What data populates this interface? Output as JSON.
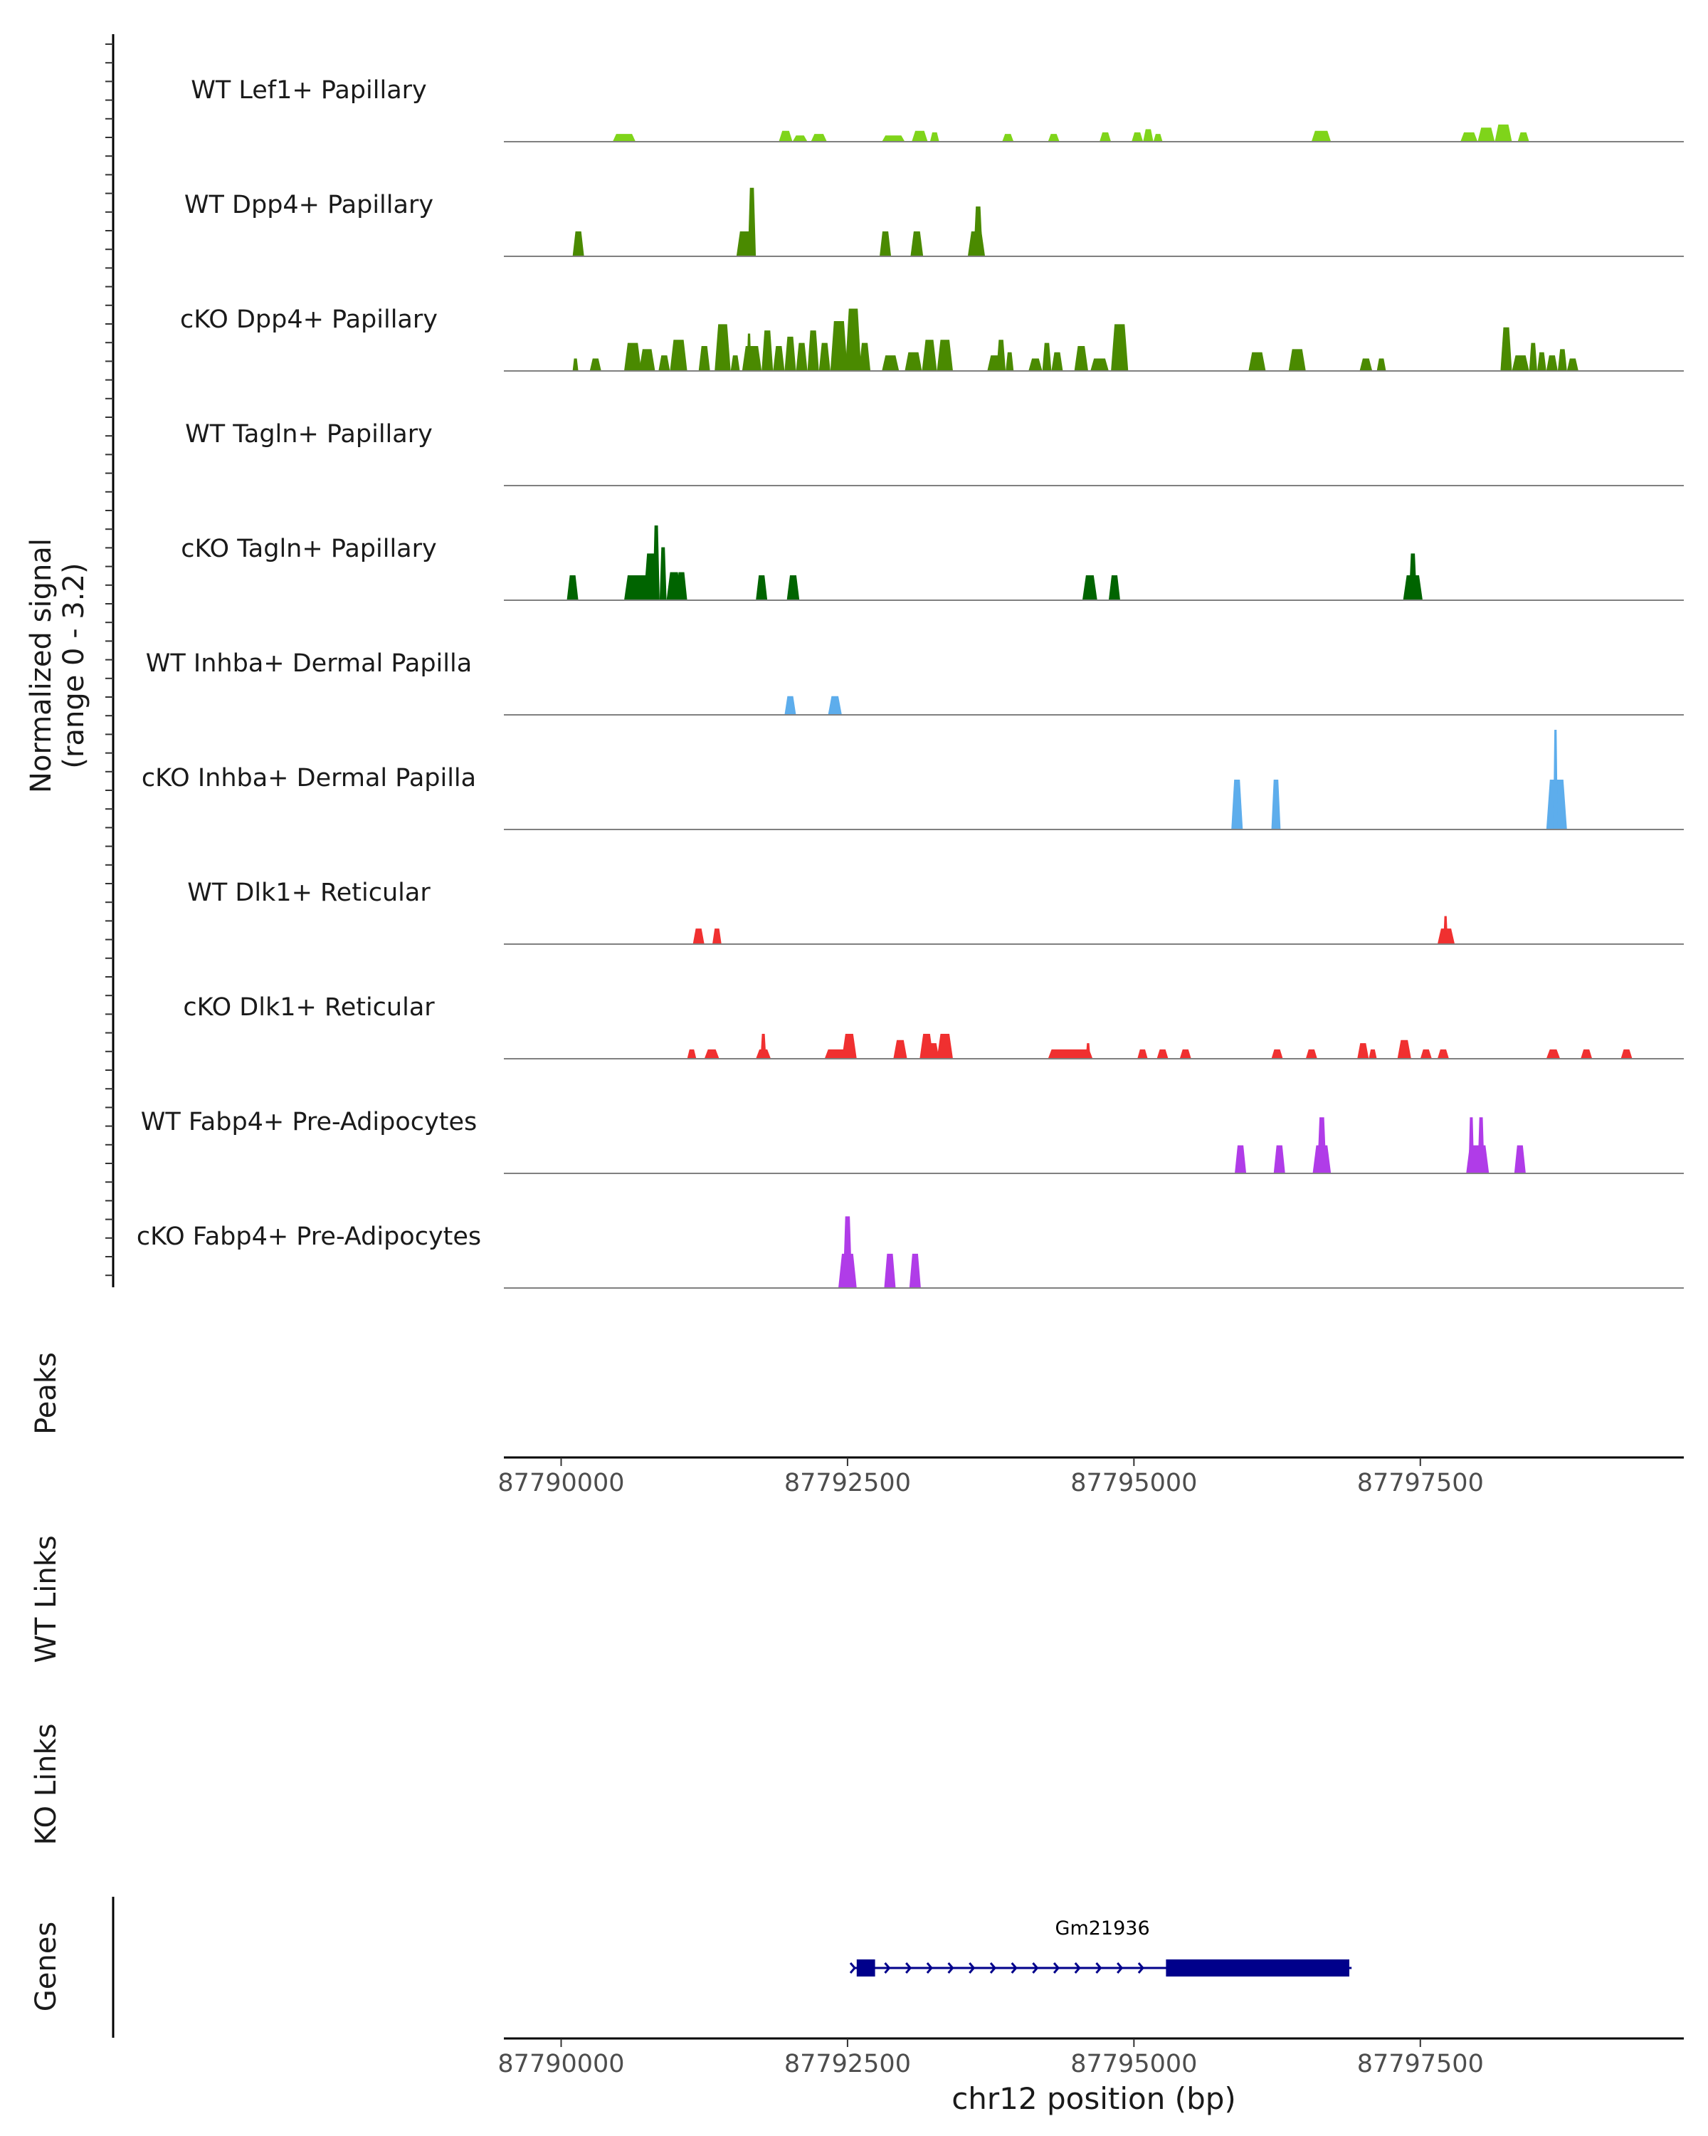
{
  "chart_data": {
    "type": "area",
    "chromosome": "chr12",
    "xlim": [
      87789500,
      87799800
    ],
    "xticks": [
      87790000,
      87792500,
      87795000,
      87797500
    ],
    "xtick_labels": [
      "87790000",
      "87792500",
      "87795000",
      "87797500"
    ],
    "xlabel": "chr12 position (bp)",
    "coverage_ylabel_line1": "Normalized signal",
    "coverage_ylabel_line2": "(range 0 - 3.2)",
    "ylim": [
      0,
      3.2
    ],
    "colors": {
      "lef1": "#7FD41A",
      "papillary": "#4A8A00",
      "tagln": "#006400",
      "inhba": "#5DADEC",
      "dlk1": "#F03030",
      "fabp4": "#B03CE8",
      "gene": "#00008B",
      "baseline": "#808080"
    },
    "tracks": [
      {
        "name": "WT Lef1+ Papillary",
        "color_key": "lef1",
        "peaks": [
          [
            87790450,
            87790650,
            0.25
          ],
          [
            87791900,
            87792020,
            0.35
          ],
          [
            87792020,
            87792150,
            0.2
          ],
          [
            87792180,
            87792320,
            0.25
          ],
          [
            87792800,
            87793000,
            0.2
          ],
          [
            87793060,
            87793200,
            0.35
          ],
          [
            87793220,
            87793300,
            0.3
          ],
          [
            87793850,
            87793950,
            0.25
          ],
          [
            87794250,
            87794350,
            0.25
          ],
          [
            87794700,
            87794800,
            0.3
          ],
          [
            87794980,
            87795080,
            0.3
          ],
          [
            87795080,
            87795170,
            0.4
          ],
          [
            87795170,
            87795250,
            0.25
          ],
          [
            87796550,
            87796720,
            0.35
          ],
          [
            87797850,
            87798000,
            0.3
          ],
          [
            87798000,
            87798150,
            0.45
          ],
          [
            87798150,
            87798300,
            0.55
          ],
          [
            87798350,
            87798450,
            0.3
          ]
        ]
      },
      {
        "name": "WT Dpp4+ Papillary",
        "color_key": "papillary",
        "peaks": [
          [
            87790100,
            87790200,
            0.8
          ],
          [
            87791530,
            87791700,
            0.8
          ],
          [
            87791630,
            87791700,
            2.2
          ],
          [
            87792780,
            87792880,
            0.8
          ],
          [
            87793050,
            87793160,
            0.8
          ],
          [
            87793550,
            87793700,
            0.8
          ],
          [
            87793600,
            87793680,
            1.6
          ]
        ]
      },
      {
        "name": "cKO Dpp4+ Papillary",
        "color_key": "papillary",
        "peaks": [
          [
            87790100,
            87790150,
            0.4
          ],
          [
            87790250,
            87790350,
            0.4
          ],
          [
            87790550,
            87790700,
            0.9
          ],
          [
            87790680,
            87790820,
            0.7
          ],
          [
            87790850,
            87790950,
            0.5
          ],
          [
            87790950,
            87791100,
            1.0
          ],
          [
            87791200,
            87791300,
            0.8
          ],
          [
            87791340,
            87791480,
            1.5
          ],
          [
            87791480,
            87791560,
            0.5
          ],
          [
            87791580,
            87791750,
            0.8
          ],
          [
            87791620,
            87791660,
            1.2
          ],
          [
            87791750,
            87791850,
            1.3
          ],
          [
            87791850,
            87791950,
            0.8
          ],
          [
            87791950,
            87792050,
            1.1
          ],
          [
            87792050,
            87792150,
            0.9
          ],
          [
            87792150,
            87792250,
            1.3
          ],
          [
            87792250,
            87792350,
            0.9
          ],
          [
            87792350,
            87792500,
            1.6
          ],
          [
            87792480,
            87792620,
            2.0
          ],
          [
            87792600,
            87792700,
            0.9
          ],
          [
            87792800,
            87792950,
            0.5
          ],
          [
            87793000,
            87793150,
            0.6
          ],
          [
            87793150,
            87793280,
            1.0
          ],
          [
            87793280,
            87793420,
            1.0
          ],
          [
            87793720,
            87793850,
            0.5
          ],
          [
            87793800,
            87793880,
            1.0
          ],
          [
            87793880,
            87793950,
            0.6
          ],
          [
            87794080,
            87794200,
            0.4
          ],
          [
            87794200,
            87794280,
            0.9
          ],
          [
            87794280,
            87794380,
            0.6
          ],
          [
            87794480,
            87794600,
            0.8
          ],
          [
            87794620,
            87794780,
            0.4
          ],
          [
            87794800,
            87794950,
            1.5
          ],
          [
            87796000,
            87796150,
            0.6
          ],
          [
            87796350,
            87796500,
            0.7
          ],
          [
            87796970,
            87797080,
            0.4
          ],
          [
            87797120,
            87797200,
            0.4
          ],
          [
            87798200,
            87798300,
            1.4
          ],
          [
            87798300,
            87798450,
            0.5
          ],
          [
            87798450,
            87798520,
            0.9
          ],
          [
            87798520,
            87798600,
            0.6
          ],
          [
            87798600,
            87798700,
            0.5
          ],
          [
            87798700,
            87798780,
            0.7
          ],
          [
            87798780,
            87798880,
            0.4
          ]
        ]
      },
      {
        "name": "WT Tagln+ Papillary",
        "color_key": "tagln",
        "peaks": []
      },
      {
        "name": "cKO Tagln+ Papillary",
        "color_key": "tagln",
        "peaks": [
          [
            87790050,
            87790150,
            0.8
          ],
          [
            87790550,
            87790800,
            0.8
          ],
          [
            87790720,
            87790840,
            1.5
          ],
          [
            87790800,
            87790860,
            2.4
          ],
          [
            87790860,
            87790920,
            1.7
          ],
          [
            87790920,
            87791050,
            0.9
          ],
          [
            87791000,
            87791100,
            0.9
          ],
          [
            87791700,
            87791800,
            0.8
          ],
          [
            87791970,
            87792080,
            0.8
          ],
          [
            87794550,
            87794680,
            0.8
          ],
          [
            87794780,
            87794880,
            0.8
          ],
          [
            87797350,
            87797520,
            0.8
          ],
          [
            87797400,
            87797470,
            1.5
          ]
        ]
      },
      {
        "name": "WT Inhba+ Dermal Papilla",
        "color_key": "inhba",
        "peaks": [
          [
            87791950,
            87792050,
            0.6
          ],
          [
            87792330,
            87792450,
            0.6
          ]
        ]
      },
      {
        "name": "cKO Inhba+ Dermal Papilla",
        "color_key": "inhba",
        "peaks": [
          [
            87795850,
            87795950,
            1.6
          ],
          [
            87796200,
            87796280,
            1.6
          ],
          [
            87798600,
            87798780,
            1.6
          ],
          [
            87798660,
            87798700,
            3.2
          ]
        ]
      },
      {
        "name": "WT Dlk1+ Reticular",
        "color_key": "dlk1",
        "peaks": [
          [
            87791150,
            87791250,
            0.5
          ],
          [
            87791320,
            87791400,
            0.5
          ],
          [
            87797650,
            87797800,
            0.5
          ],
          [
            87797700,
            87797740,
            0.9
          ]
        ]
      },
      {
        "name": "cKO Dlk1+ Reticular",
        "color_key": "dlk1",
        "peaks": [
          [
            87791100,
            87791180,
            0.3
          ],
          [
            87791250,
            87791380,
            0.3
          ],
          [
            87791700,
            87791830,
            0.3
          ],
          [
            87791740,
            87791790,
            0.8
          ],
          [
            87792300,
            87792500,
            0.3
          ],
          [
            87792450,
            87792580,
            0.8
          ],
          [
            87792900,
            87793020,
            0.6
          ],
          [
            87793130,
            87793250,
            0.8
          ],
          [
            87793200,
            87793300,
            0.5
          ],
          [
            87793280,
            87793420,
            0.8
          ],
          [
            87794250,
            87794640,
            0.3
          ],
          [
            87794580,
            87794620,
            0.5
          ],
          [
            87795030,
            87795120,
            0.3
          ],
          [
            87795200,
            87795300,
            0.3
          ],
          [
            87795400,
            87795500,
            0.3
          ],
          [
            87796200,
            87796300,
            0.3
          ],
          [
            87796500,
            87796600,
            0.3
          ],
          [
            87796950,
            87797050,
            0.5
          ],
          [
            87797050,
            87797120,
            0.3
          ],
          [
            87797300,
            87797420,
            0.6
          ],
          [
            87797500,
            87797600,
            0.3
          ],
          [
            87797650,
            87797750,
            0.3
          ],
          [
            87798600,
            87798720,
            0.3
          ],
          [
            87798900,
            87799000,
            0.3
          ],
          [
            87799250,
            87799350,
            0.3
          ]
        ]
      },
      {
        "name": "WT Fabp4+ Pre-Adipocytes",
        "color_key": "fabp4",
        "peaks": [
          [
            87795880,
            87795980,
            0.9
          ],
          [
            87796220,
            87796320,
            0.9
          ],
          [
            87796560,
            87796720,
            0.9
          ],
          [
            87796600,
            87796680,
            1.8
          ],
          [
            87797900,
            87798100,
            0.9
          ],
          [
            87797920,
            87797970,
            1.8
          ],
          [
            87798000,
            87798060,
            1.8
          ],
          [
            87798320,
            87798420,
            0.9
          ]
        ]
      },
      {
        "name": "cKO Fabp4+ Pre-Adipocytes",
        "color_key": "fabp4",
        "peaks": [
          [
            87792420,
            87792580,
            1.1
          ],
          [
            87792460,
            87792540,
            2.3
          ],
          [
            87792820,
            87792920,
            1.1
          ],
          [
            87793040,
            87793140,
            1.1
          ]
        ]
      }
    ],
    "panels": {
      "peaks_label": "Peaks",
      "wt_links_label": "WT Links",
      "ko_links_label": "KO Links",
      "genes_label": "Genes"
    },
    "gene": {
      "name": "Gm21936",
      "start": 87792550,
      "end": 87796900,
      "strand": "+",
      "exons": [
        [
          87792580,
          87792740
        ],
        [
          87795280,
          87796880
        ]
      ]
    }
  }
}
